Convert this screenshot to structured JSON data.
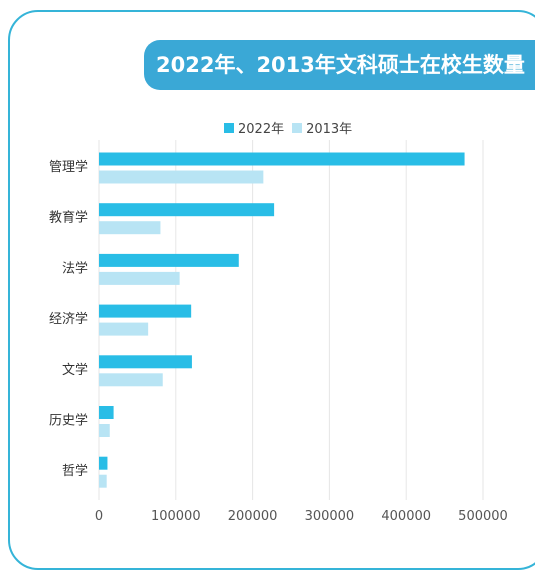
{
  "colors": {
    "series_2022": "#29bde6",
    "series_2013": "#b8e4f4",
    "grid": "#e6e6e6",
    "title_bg": "#3aa8d6",
    "border": "#35b4d8"
  },
  "chart_data": {
    "type": "bar",
    "orientation": "horizontal",
    "title": "2022年、2013年文科硕士在校生数量",
    "categories": [
      "管理学",
      "教育学",
      "法学",
      "经济学",
      "文学",
      "历史学",
      "哲学"
    ],
    "series": [
      {
        "name": "2022年",
        "values": [
          476000,
          228000,
          182000,
          120000,
          121000,
          19000,
          11000
        ]
      },
      {
        "name": "2013年",
        "values": [
          214000,
          80000,
          105000,
          64000,
          83000,
          14000,
          10000
        ]
      }
    ],
    "xlim": [
      0,
      500000
    ],
    "xticks": [
      0,
      100000,
      200000,
      300000,
      400000,
      500000
    ],
    "xtick_labels": [
      "0",
      "100000",
      "200000",
      "300000",
      "400000",
      "500000"
    ],
    "grid": true,
    "legend_position": "top"
  }
}
